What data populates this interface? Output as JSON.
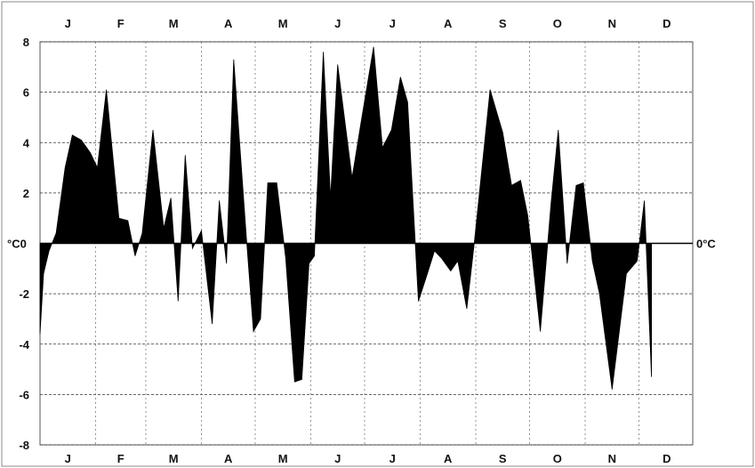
{
  "chart_data": {
    "type": "area",
    "months_top": [
      "J",
      "F",
      "M",
      "A",
      "M",
      "J",
      "J",
      "A",
      "S",
      "O",
      "N",
      "D"
    ],
    "months_bottom": [
      "J",
      "F",
      "M",
      "A",
      "M",
      "J",
      "J",
      "A",
      "S",
      "O",
      "N",
      "D"
    ],
    "zero_label_left": "°C0",
    "zero_label_right": "0°C",
    "y_ticks": [
      {
        "value": 8,
        "label": "8"
      },
      {
        "value": 6,
        "label": "6"
      },
      {
        "value": 4,
        "label": "4"
      },
      {
        "value": 2,
        "label": "2"
      },
      {
        "value": -2,
        "label": "-2"
      },
      {
        "value": -4,
        "label": "-4"
      },
      {
        "value": -6,
        "label": "-6"
      },
      {
        "value": -8,
        "label": "-8"
      }
    ],
    "ylim": [
      -8,
      8
    ],
    "xlim": [
      1,
      365
    ],
    "grid": true,
    "x_unit": "day of year",
    "y_unit": "°C",
    "fill_color": "#000000",
    "series": [
      {
        "points": [
          [
            1,
            -3.6
          ],
          [
            3,
            -1.2
          ],
          [
            6,
            -0.3
          ],
          [
            10,
            0.4
          ],
          [
            15,
            3.0
          ],
          [
            19,
            4.3
          ],
          [
            24,
            4.1
          ],
          [
            29,
            3.6
          ],
          [
            33,
            3.0
          ],
          [
            38,
            6.1
          ],
          [
            45,
            1.0
          ],
          [
            50,
            0.9
          ],
          [
            54,
            -0.5
          ],
          [
            58,
            0.4
          ],
          [
            64,
            4.5
          ],
          [
            70,
            0.6
          ],
          [
            74,
            1.8
          ],
          [
            78,
            -2.3
          ],
          [
            82,
            3.5
          ],
          [
            86,
            -0.2
          ],
          [
            91,
            0.5
          ],
          [
            97,
            -3.2
          ],
          [
            101,
            1.7
          ],
          [
            105,
            -0.8
          ],
          [
            109,
            7.3
          ],
          [
            116,
            0.3
          ],
          [
            120,
            -3.5
          ],
          [
            124,
            -3.0
          ],
          [
            128,
            2.4
          ],
          [
            133,
            2.4
          ],
          [
            138,
            -0.6
          ],
          [
            143,
            -5.5
          ],
          [
            147,
            -5.4
          ],
          [
            151,
            -0.8
          ],
          [
            154,
            -0.5
          ],
          [
            159,
            7.6
          ],
          [
            163,
            1.8
          ],
          [
            167,
            7.1
          ],
          [
            175,
            2.6
          ],
          [
            180,
            4.8
          ],
          [
            187,
            7.8
          ],
          [
            192,
            3.8
          ],
          [
            197,
            4.5
          ],
          [
            202,
            6.6
          ],
          [
            206,
            5.6
          ],
          [
            212,
            -2.3
          ],
          [
            217,
            -1.2
          ],
          [
            221,
            -0.3
          ],
          [
            225,
            -0.6
          ],
          [
            230,
            -1.1
          ],
          [
            234,
            -0.7
          ],
          [
            239,
            -2.6
          ],
          [
            243,
            -0.1
          ],
          [
            252,
            6.1
          ],
          [
            259,
            4.4
          ],
          [
            264,
            2.3
          ],
          [
            269,
            2.5
          ],
          [
            273,
            1.1
          ],
          [
            280,
            -3.5
          ],
          [
            286,
            1.6
          ],
          [
            290,
            4.5
          ],
          [
            295,
            -0.8
          ],
          [
            300,
            2.3
          ],
          [
            304,
            2.4
          ],
          [
            309,
            -0.7
          ],
          [
            313,
            -2.0
          ],
          [
            320,
            -5.8
          ],
          [
            328,
            -1.2
          ],
          [
            334,
            -0.7
          ],
          [
            338,
            1.7
          ],
          [
            342,
            -5.3
          ]
        ]
      }
    ]
  }
}
